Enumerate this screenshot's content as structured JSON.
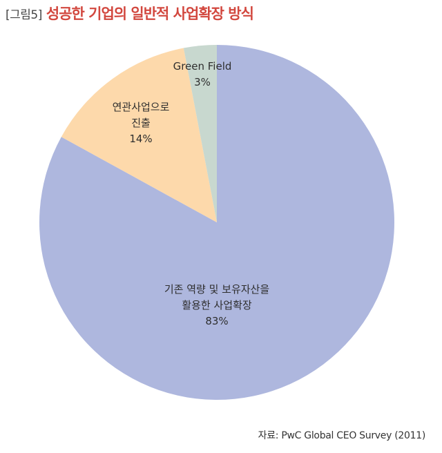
{
  "header": {
    "figure_number": "[그림5]",
    "title": "성공한 기업의 일반적 사업확장 방식"
  },
  "chart_data": {
    "type": "pie",
    "start_angle_deg": 0,
    "direction": "clockwise",
    "slices": [
      {
        "label_lines": [
          "기존 역량 및 보유자산을",
          "활용한 사업확장"
        ],
        "value_text": "83%",
        "value": 83,
        "color": "#aeb7de"
      },
      {
        "label_lines": [
          "연관사업으로",
          "진출"
        ],
        "value_text": "14%",
        "value": 14,
        "color": "#fdd9ab"
      },
      {
        "label_lines": [
          "Green Field"
        ],
        "value_text": "3%",
        "value": 3,
        "color": "#c8d8cf"
      }
    ]
  },
  "source": {
    "text": "자료: PwC Global CEO Survey (2011)"
  }
}
